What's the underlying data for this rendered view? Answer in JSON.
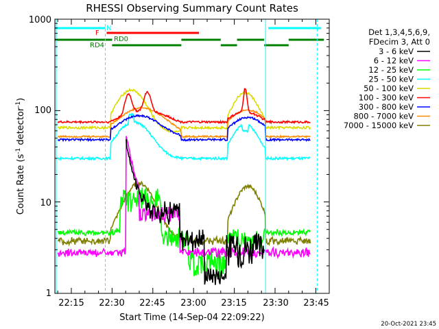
{
  "chart_data": {
    "type": "line",
    "title": "RHESSI Observing Summary Count Rates",
    "xlabel": "Start Time (14-Sep-04 22:09:22)",
    "ylabel_main": "Count Rate (s",
    "ylabel_sup1": "-1",
    "ylabel_mid": " detector",
    "ylabel_sup2": "-1",
    "ylabel_end": ")",
    "footer": "20-Oct-2021 23:45",
    "yscale": "log",
    "ylim": [
      1,
      1000
    ],
    "xlim_minutes": [
      22.15,
      23.78
    ],
    "x_ticks": [
      "22:15",
      "22:30",
      "22:45",
      "23:00",
      "23:15",
      "23:30",
      "23:45"
    ],
    "y_ticks": [
      "1",
      "10",
      "100",
      "1000"
    ],
    "legend_header": [
      "Det 1,3,4,5,6,9,",
      "FDecim 3, Att 0"
    ],
    "series": [
      {
        "name": "3 - 6 keV",
        "color": "#000000"
      },
      {
        "name": "6 - 12 keV",
        "color": "#ff00ff"
      },
      {
        "name": "12 - 25 keV",
        "color": "#00ff00"
      },
      {
        "name": "25 - 50 keV",
        "color": "#00ffff"
      },
      {
        "name": "50 - 100 keV",
        "color": "#dcdc00"
      },
      {
        "name": "100 - 300 keV",
        "color": "#ff0000"
      },
      {
        "name": "300 - 800 keV",
        "color": "#0000ff"
      },
      {
        "name": "800 - 7000 keV",
        "color": "#ff8c00"
      },
      {
        "name": "7000 - 15000 keV",
        "color": "#808000"
      }
    ],
    "flags": [
      {
        "label": "N",
        "color": "#00ffff"
      },
      {
        "label": "F",
        "color": "#ff0000"
      },
      {
        "label": "RD0",
        "color": "#008000"
      },
      {
        "label": "RD4",
        "color": "#008000"
      }
    ]
  }
}
